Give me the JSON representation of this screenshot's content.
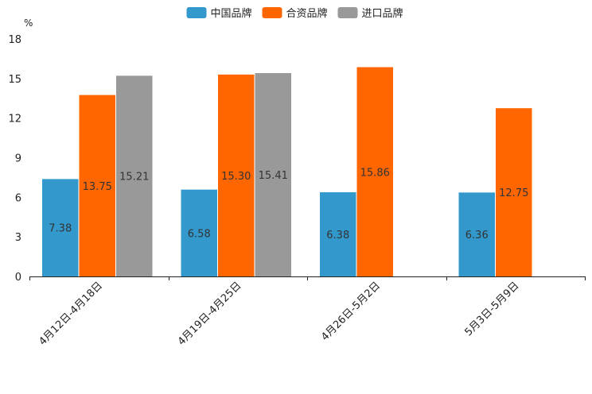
{
  "chart_data": {
    "type": "bar",
    "title": "",
    "unit_label": "%",
    "xlabel": "",
    "ylabel": "",
    "ylim": [
      0,
      18
    ],
    "yticks": [
      0,
      3,
      6,
      9,
      12,
      15,
      18
    ],
    "grid": false,
    "legend_position": "top-center",
    "categories": [
      "4月12日-4月18日",
      "4月19日-4月25日",
      "4月26日-5月2日",
      "5月3日-5月9日"
    ],
    "series": [
      {
        "name": "中国品牌",
        "color": "#3399cc",
        "values": [
          7.38,
          6.58,
          6.38,
          6.36
        ],
        "labels": [
          "7.38",
          "6.58",
          "6.38",
          "6.36"
        ]
      },
      {
        "name": "合资品牌",
        "color": "#ff6600",
        "values": [
          13.75,
          15.3,
          15.86,
          12.75
        ],
        "labels": [
          "13.75",
          "15.30",
          "15.86",
          "12.75"
        ]
      },
      {
        "name": "进口品牌",
        "color": "#999999",
        "values": [
          15.21,
          15.41,
          null,
          null
        ],
        "labels": [
          "15.21",
          "15.41",
          null,
          null
        ]
      }
    ]
  }
}
